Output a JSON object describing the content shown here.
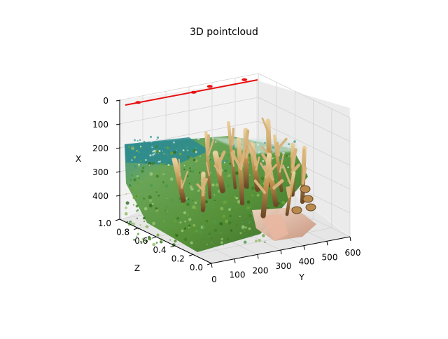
{
  "chart_data": {
    "type": "scatter",
    "projection": "3d",
    "title": "3D pointcloud",
    "xlabel": "Y",
    "ylabel": "Z",
    "zlabel": "X",
    "y_axis_ticks": [
      "0",
      "100",
      "200",
      "300",
      "400",
      "500",
      "600"
    ],
    "z_axis_ticks": [
      "0.0",
      "0.2",
      "0.4",
      "0.6",
      "0.8",
      "1.0"
    ],
    "x_axis_ticks": [
      "0",
      "100",
      "200",
      "300",
      "400"
    ],
    "x_axis_inverted": true,
    "grid": true,
    "surface_description": "textured point cloud of branching coral over green seagrass seabed",
    "series": [
      {
        "color": "#e81010",
        "marker": "line",
        "points": [
          [
            0,
            1.0,
            0
          ],
          [
            600,
            1.0,
            0
          ]
        ]
      },
      {
        "color": "#e81010",
        "marker": "blob",
        "points": [
          [
            80,
            1.0,
            10
          ],
          [
            320,
            1.0,
            12
          ],
          [
            390,
            1.0,
            0
          ],
          [
            540,
            1.0,
            0
          ]
        ]
      }
    ],
    "colors": {
      "pane": "#f2f2f2",
      "grid": "#d4d4d4",
      "seagrass": "#4e8e2a",
      "coral": "#c79a5c",
      "water": "#2e8f8a",
      "highlight": "#e81010"
    }
  }
}
